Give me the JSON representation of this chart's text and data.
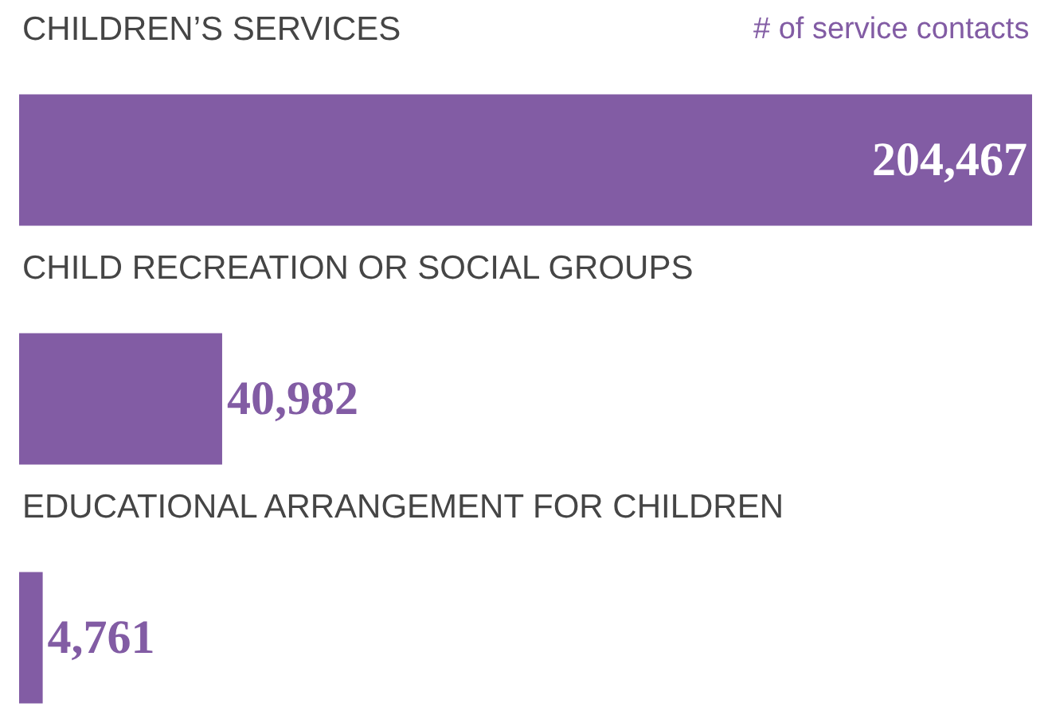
{
  "chart_data": {
    "type": "bar",
    "orientation": "horizontal",
    "xlabel": "# of service contacts",
    "categories": [
      "CHILDREN’S SERVICES",
      "CHILD RECREATION OR SOCIAL GROUPS",
      "EDUCATIONAL ARRANGEMENT FOR CHILDREN"
    ],
    "values": [
      204467,
      40982,
      4761
    ],
    "color": "#825ca4",
    "value_labels": [
      "204,467",
      "40,982",
      "4,761"
    ]
  }
}
